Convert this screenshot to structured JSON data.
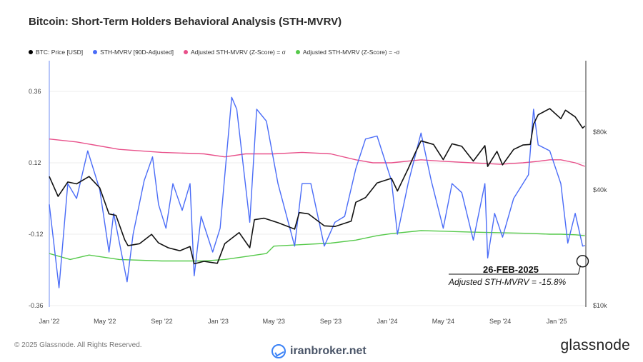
{
  "chart_data": {
    "type": "line",
    "title": "Bitcoin: Short-Term Holders Behavioral Analysis (STH-MVRV)",
    "legend": [
      {
        "name": "BTC: Price [USD]",
        "color": "#000000"
      },
      {
        "name": "STH-MVRV [90D-Adjusted]",
        "color": "#4a6cf7"
      },
      {
        "name": "Adjusted STH-MVRV (Z-Score) = σ",
        "color": "#e8508a"
      },
      {
        "name": "Adjusted STH-MVRV (Z-Score) = -σ",
        "color": "#55c94a"
      }
    ],
    "x_ticks": [
      "Jan '22",
      "May '22",
      "Sep '22",
      "Jan '23",
      "May '23",
      "Sep '23",
      "Jan '24",
      "May '24",
      "Sep '24",
      "Jan '25"
    ],
    "x_range": [
      "2022-01-01",
      "2025-03-05"
    ],
    "y_left": {
      "ticks": [
        "0.36",
        "0.12",
        "-0.12",
        "-0.36"
      ],
      "range": [
        -0.36,
        0.36
      ]
    },
    "y_right": {
      "ticks": [
        "$80k",
        "$40k",
        "$10k"
      ],
      "scale": "log"
    },
    "series": [
      {
        "name": "BTC: Price [USD]",
        "axis": "right",
        "x": [
          "2022-01-01",
          "2022-01-20",
          "2022-02-10",
          "2022-03-01",
          "2022-03-28",
          "2022-04-20",
          "2022-05-10",
          "2022-05-25",
          "2022-06-13",
          "2022-06-20",
          "2022-07-15",
          "2022-08-10",
          "2022-08-25",
          "2022-09-15",
          "2022-10-10",
          "2022-11-01",
          "2022-11-10",
          "2022-12-01",
          "2022-12-30",
          "2023-01-15",
          "2023-02-15",
          "2023-03-10",
          "2023-03-20",
          "2023-04-10",
          "2023-05-10",
          "2023-06-15",
          "2023-06-25",
          "2023-07-15",
          "2023-08-18",
          "2023-09-10",
          "2023-10-15",
          "2023-10-25",
          "2023-11-15",
          "2023-12-10",
          "2024-01-10",
          "2024-01-23",
          "2024-02-15",
          "2024-03-01",
          "2024-03-14",
          "2024-04-10",
          "2024-05-01",
          "2024-05-20",
          "2024-06-10",
          "2024-07-05",
          "2024-07-30",
          "2024-08-05",
          "2024-08-25",
          "2024-09-06",
          "2024-09-30",
          "2024-10-20",
          "2024-11-05",
          "2024-11-12",
          "2024-11-22",
          "2024-12-17",
          "2025-01-10",
          "2025-01-20",
          "2025-02-10",
          "2025-02-26",
          "2025-03-03"
        ],
        "y": [
          47000,
          37000,
          44000,
          43000,
          47000,
          41000,
          30000,
          29500,
          22000,
          20500,
          21000,
          23500,
          21200,
          20000,
          19300,
          20300,
          16500,
          17000,
          16600,
          21000,
          24000,
          20000,
          28000,
          28500,
          27000,
          25000,
          30500,
          30000,
          26000,
          25800,
          27500,
          34500,
          36500,
          43500,
          46000,
          39500,
          51500,
          62000,
          72000,
          69000,
          57500,
          69500,
          67500,
          56500,
          68000,
          53000,
          63500,
          54000,
          65000,
          68500,
          69000,
          88000,
          98500,
          106000,
          94000,
          104000,
          96000,
          84000,
          86000
        ]
      },
      {
        "name": "STH-MVRV [90D-Adjusted]",
        "axis": "left",
        "x": [
          "2022-01-01",
          "2022-01-22",
          "2022-02-10",
          "2022-03-01",
          "2022-03-25",
          "2022-04-20",
          "2022-05-10",
          "2022-05-20",
          "2022-06-18",
          "2022-07-01",
          "2022-07-25",
          "2022-08-12",
          "2022-08-25",
          "2022-09-10",
          "2022-09-25",
          "2022-10-15",
          "2022-11-01",
          "2022-11-10",
          "2022-11-25",
          "2022-12-20",
          "2023-01-05",
          "2023-01-30",
          "2023-02-10",
          "2023-03-10",
          "2023-03-25",
          "2023-04-15",
          "2023-05-10",
          "2023-06-15",
          "2023-07-01",
          "2023-07-20",
          "2023-08-18",
          "2023-09-10",
          "2023-10-01",
          "2023-10-25",
          "2023-11-15",
          "2023-12-10",
          "2024-01-10",
          "2024-01-23",
          "2024-02-15",
          "2024-03-14",
          "2024-04-05",
          "2024-05-01",
          "2024-05-20",
          "2024-06-10",
          "2024-07-05",
          "2024-07-30",
          "2024-08-05",
          "2024-08-20",
          "2024-09-06",
          "2024-09-30",
          "2024-10-20",
          "2024-11-01",
          "2024-11-12",
          "2024-11-22",
          "2024-12-17",
          "2025-01-10",
          "2025-01-25",
          "2025-02-10",
          "2025-02-26",
          "2025-03-03"
        ],
        "y": [
          -0.02,
          -0.3,
          0.05,
          0.0,
          0.16,
          0.03,
          -0.18,
          -0.05,
          -0.28,
          -0.12,
          0.06,
          0.14,
          -0.02,
          -0.1,
          0.05,
          -0.04,
          0.05,
          -0.26,
          -0.06,
          -0.18,
          -0.1,
          0.34,
          0.3,
          -0.08,
          0.3,
          0.26,
          0.05,
          -0.16,
          0.05,
          0.05,
          -0.16,
          -0.08,
          -0.06,
          0.1,
          0.2,
          0.21,
          0.06,
          -0.12,
          0.05,
          0.22,
          0.06,
          -0.1,
          0.05,
          0.02,
          -0.14,
          0.05,
          -0.2,
          -0.05,
          -0.13,
          0.0,
          0.05,
          0.08,
          0.3,
          0.18,
          0.16,
          0.05,
          -0.15,
          -0.05,
          -0.16,
          -0.158
        ]
      },
      {
        "name": "Adjusted STH-MVRV (Z-Score) = σ",
        "axis": "left",
        "x": [
          "2022-01-01",
          "2022-03-01",
          "2022-06-01",
          "2022-09-01",
          "2022-12-01",
          "2023-01-15",
          "2023-03-01",
          "2023-05-01",
          "2023-07-01",
          "2023-09-01",
          "2023-10-25",
          "2023-12-01",
          "2024-01-10",
          "2024-03-14",
          "2024-05-01",
          "2024-07-01",
          "2024-09-01",
          "2024-10-20",
          "2024-11-22",
          "2024-12-17",
          "2025-01-10",
          "2025-02-10",
          "2025-03-03"
        ],
        "y": [
          0.2,
          0.19,
          0.165,
          0.155,
          0.15,
          0.14,
          0.15,
          0.15,
          0.155,
          0.15,
          0.13,
          0.12,
          0.12,
          0.13,
          0.125,
          0.12,
          0.115,
          0.12,
          0.125,
          0.13,
          0.13,
          0.12,
          0.108
        ]
      },
      {
        "name": "Adjusted STH-MVRV (Z-Score) = -σ",
        "axis": "left",
        "x": [
          "2022-01-01",
          "2022-02-15",
          "2022-03-28",
          "2022-06-01",
          "2022-09-01",
          "2022-12-01",
          "2023-01-15",
          "2023-03-01",
          "2023-04-15",
          "2023-05-01",
          "2023-07-01",
          "2023-09-01",
          "2023-10-25",
          "2023-12-10",
          "2024-01-10",
          "2024-03-14",
          "2024-05-01",
          "2024-07-01",
          "2024-09-01",
          "2024-11-01",
          "2024-12-17",
          "2025-01-10",
          "2025-02-10",
          "2025-03-03"
        ],
        "y": [
          -0.185,
          -0.205,
          -0.19,
          -0.205,
          -0.21,
          -0.21,
          -0.205,
          -0.195,
          -0.185,
          -0.16,
          -0.155,
          -0.15,
          -0.14,
          -0.125,
          -0.118,
          -0.108,
          -0.11,
          -0.113,
          -0.115,
          -0.117,
          -0.12,
          -0.12,
          -0.122,
          -0.125
        ]
      }
    ],
    "annotation": {
      "date": "26-FEB-2025",
      "text": "Adjusted STH-MVRV = -15.8%",
      "x": "2025-02-26",
      "y": -0.158
    }
  },
  "footer": {
    "copyright": "© 2025 Glassnode. All Rights Reserved.",
    "watermark": "iranbroker.net",
    "brand": "glassnode"
  }
}
